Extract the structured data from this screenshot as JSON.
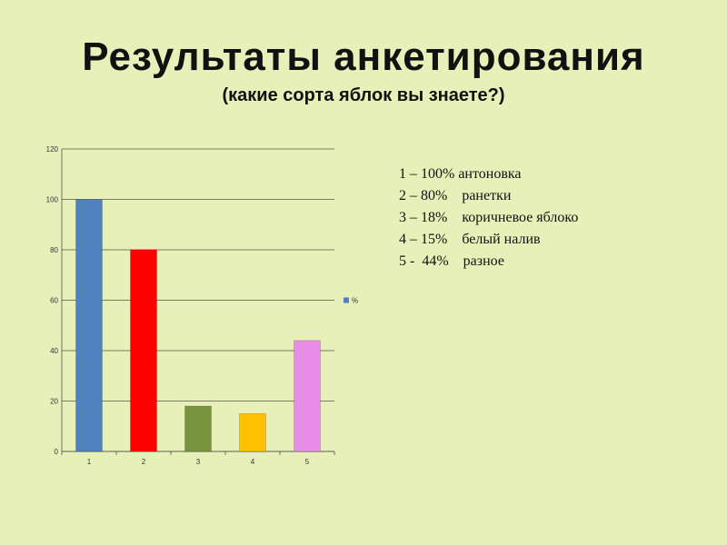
{
  "title": "Результаты анкетирования",
  "subtitle": "(какие сорта яблок вы знаете?)",
  "legend_text": [
    "1 – 100% антоновка",
    "2 – 80%    ранетки",
    "3 – 18%    коричневое яблоко",
    "4 – 15%    белый налив",
    "5 -  44%    разное"
  ],
  "chart_data": {
    "type": "bar",
    "categories": [
      "1",
      "2",
      "3",
      "4",
      "5"
    ],
    "series": [
      {
        "name": "%",
        "values": [
          100,
          80,
          18,
          15,
          44
        ]
      }
    ],
    "bar_colors": [
      "#4f81bd",
      "#ff0000",
      "#77933c",
      "#ffc000",
      "#e88ee8"
    ],
    "legend_swatch_color": "#4f81bd",
    "y_ticks": [
      "0",
      "20",
      "40",
      "60",
      "80",
      "100",
      "120"
    ],
    "ylim": [
      0,
      120
    ],
    "grid": true,
    "legend_position": "right"
  }
}
